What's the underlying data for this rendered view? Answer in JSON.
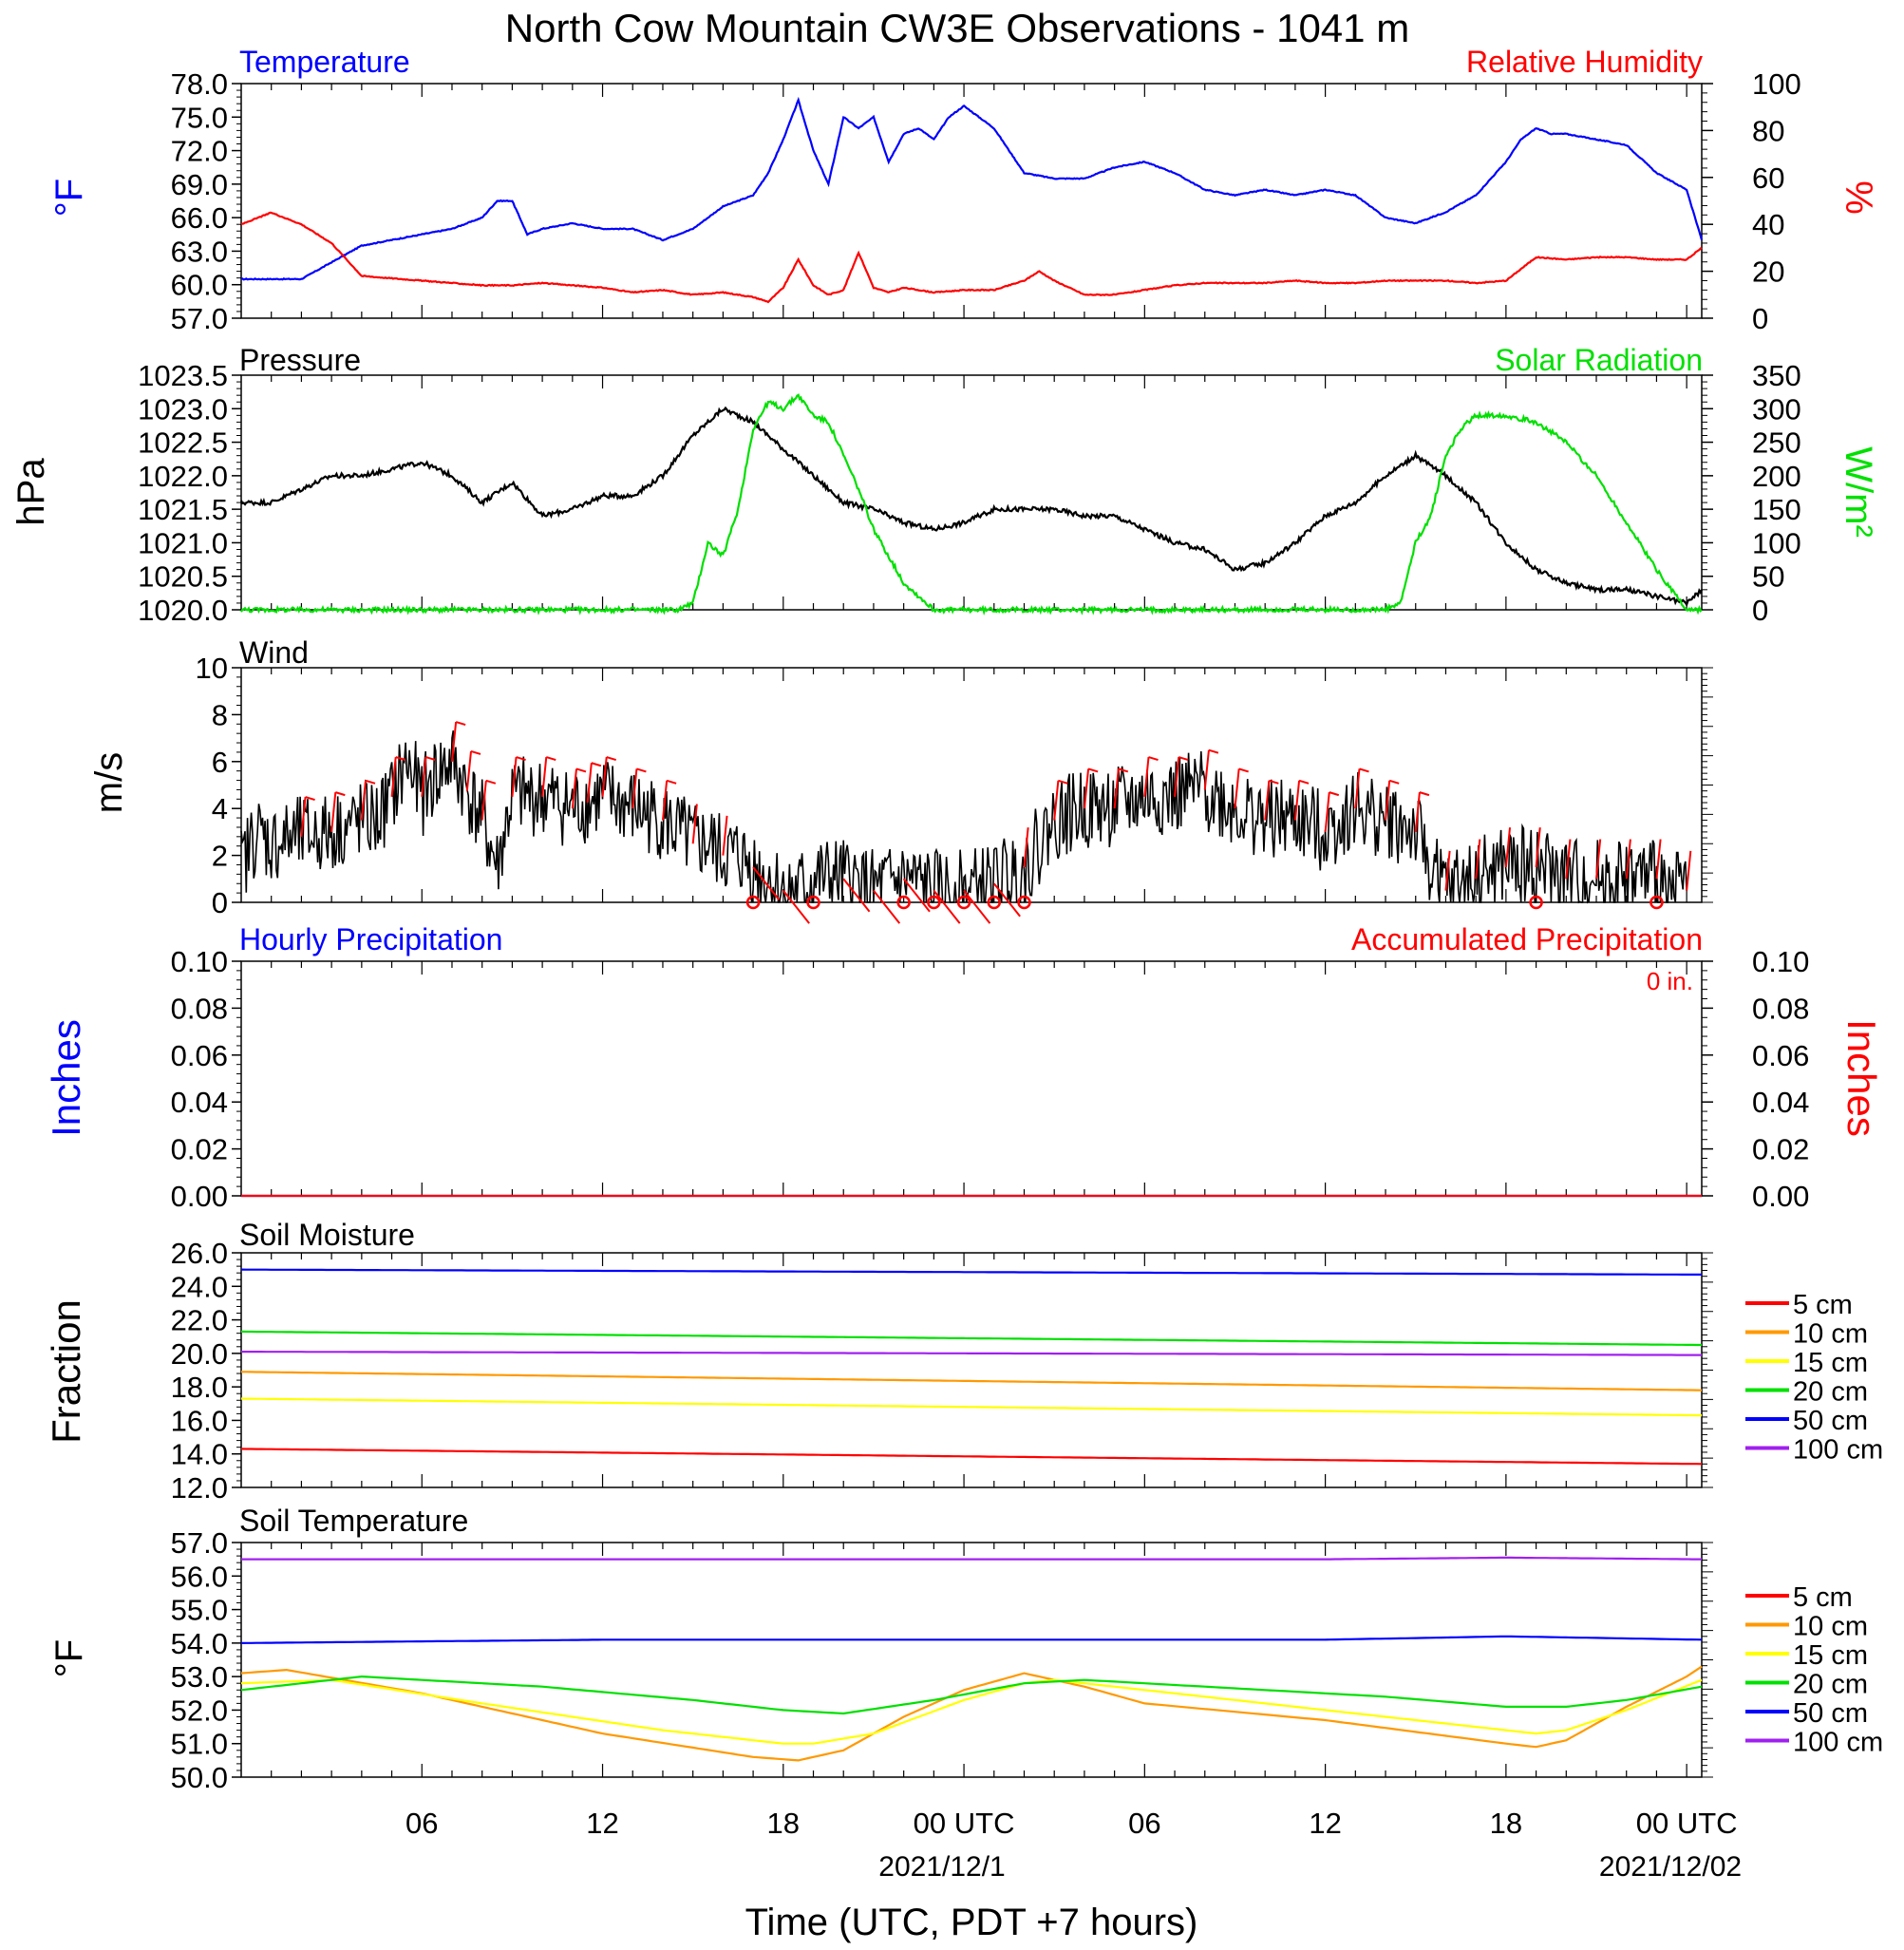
{
  "title": "North Cow Mountain CW3E Observations - 1041 m",
  "xaxis": {
    "label": "Time (UTC, PDT +7 hours)",
    "tick_labels": [
      "06",
      "12",
      "18",
      "00 UTC",
      "06",
      "12",
      "18",
      "00 UTC"
    ],
    "date_labels": [
      "2021/12/1",
      "2021/12/02"
    ]
  },
  "colors": {
    "blue": "#0000ff",
    "red": "#ff0000",
    "green": "#00e000",
    "orange": "#ff9900",
    "yellow": "#ffff00",
    "purple": "#a020f0",
    "black": "#000000"
  },
  "chart_data": [
    {
      "id": "temp_rh",
      "type": "line",
      "title_left": "Temperature",
      "title_right": "Relative Humidity",
      "ylabel_left": "°F",
      "ylabel_right": "%",
      "ylim_left": [
        57,
        78
      ],
      "ylim_right": [
        0,
        100
      ],
      "yticks_left": [
        "78.0",
        "75.0",
        "72.0",
        "69.0",
        "66.0",
        "63.0",
        "60.0",
        "57.0"
      ],
      "yticks_right": [
        "100",
        "80",
        "60",
        "40",
        "20",
        "0"
      ],
      "series": [
        {
          "name": "Temperature",
          "axis": "left",
          "color": "#0000ff",
          "x": [
            0,
            2,
            3,
            4,
            5,
            6,
            7,
            8,
            8.5,
            9,
            9.5,
            10,
            11,
            12,
            13,
            14,
            15,
            16,
            17,
            17.5,
            18,
            18.5,
            19,
            19.5,
            20,
            20.5,
            21,
            21.5,
            22,
            22.5,
            23,
            23.5,
            24,
            25,
            26,
            27,
            28,
            29,
            30,
            31,
            32,
            33,
            34,
            35,
            36,
            37,
            38,
            39,
            40,
            41,
            42,
            42.5,
            43,
            43.5,
            44,
            45,
            46,
            47,
            48,
            48.5
          ],
          "y": [
            60.5,
            60.5,
            62,
            63.5,
            64,
            64.5,
            65,
            66,
            67.5,
            67.5,
            64.5,
            65,
            65.5,
            65,
            65,
            64,
            65,
            67,
            68,
            70,
            73,
            76.5,
            72,
            69,
            75,
            74,
            75,
            71,
            73.5,
            74,
            73,
            75,
            76,
            74,
            70,
            69.5,
            69.5,
            70.5,
            71,
            70,
            68.5,
            68,
            68.5,
            68,
            68.5,
            68,
            66,
            65.5,
            66.5,
            68,
            71,
            73,
            74,
            73.5,
            73.5,
            73,
            72.5,
            70,
            68.5,
            64
          ]
        },
        {
          "name": "Relative Humidity",
          "axis": "right",
          "color": "#ff0000",
          "x": [
            0,
            1,
            2,
            3,
            4,
            5,
            6,
            7,
            8,
            9,
            10,
            11,
            12,
            13,
            14,
            15,
            16,
            17,
            17.5,
            18,
            18.5,
            19,
            19.5,
            20,
            20.5,
            21,
            21.5,
            22,
            23,
            24,
            25,
            26,
            26.5,
            27,
            28,
            29,
            30,
            31,
            32,
            33,
            34,
            35,
            36,
            37,
            38,
            39,
            40,
            41,
            42,
            43,
            44,
            45,
            46,
            47,
            48,
            48.5
          ],
          "y": [
            40,
            45,
            40,
            32,
            18,
            17,
            16,
            15,
            14,
            14,
            15,
            14,
            13,
            11,
            12,
            10,
            11,
            9,
            7,
            13,
            25,
            14,
            10,
            12,
            28,
            13,
            11,
            13,
            11,
            12,
            12,
            16,
            20,
            16,
            10,
            10,
            12,
            14,
            15,
            15,
            15,
            16,
            15,
            15,
            16,
            16,
            16,
            15,
            16,
            26,
            25,
            26,
            26,
            25,
            25,
            30
          ]
        }
      ]
    },
    {
      "id": "pres_solar",
      "type": "line",
      "title_left": "Pressure",
      "title_right": "Solar Radiation",
      "ylabel_left": "hPa",
      "ylabel_right": "W/m²",
      "ylim_left": [
        1020,
        1023.5
      ],
      "ylim_right": [
        0,
        350
      ],
      "yticks_left": [
        "1023.5",
        "1023.0",
        "1022.5",
        "1022.0",
        "1021.5",
        "1021.0",
        "1020.5",
        "1020.0"
      ],
      "yticks_right": [
        "350",
        "300",
        "250",
        "200",
        "150",
        "100",
        "50",
        "0"
      ],
      "series": [
        {
          "name": "Pressure",
          "axis": "left",
          "color": "#000000",
          "x": [
            0,
            1,
            2,
            3,
            4,
            5,
            6,
            7,
            8,
            9,
            10,
            11,
            12,
            13,
            14,
            15,
            16,
            17,
            18,
            19,
            20,
            21,
            22,
            23,
            24,
            25,
            26,
            27,
            28,
            29,
            30,
            31,
            32,
            33,
            34,
            35,
            36,
            37,
            38,
            39,
            40,
            41,
            42,
            43,
            44,
            45,
            46,
            47,
            48,
            48.5
          ],
          "y": [
            1021.6,
            1021.6,
            1021.8,
            1022.0,
            1022.0,
            1022.1,
            1022.2,
            1022.0,
            1021.6,
            1021.9,
            1021.4,
            1021.5,
            1021.7,
            1021.7,
            1022.0,
            1022.6,
            1023.0,
            1022.8,
            1022.4,
            1022.0,
            1021.6,
            1021.5,
            1021.3,
            1021.2,
            1021.3,
            1021.5,
            1021.5,
            1021.5,
            1021.4,
            1021.4,
            1021.2,
            1021.0,
            1020.9,
            1020.6,
            1020.7,
            1021.0,
            1021.4,
            1021.6,
            1022.0,
            1022.3,
            1022.0,
            1021.6,
            1021.0,
            1020.6,
            1020.4,
            1020.3,
            1020.3,
            1020.2,
            1020.1,
            1020.3
          ]
        },
        {
          "name": "Solar Radiation",
          "axis": "right",
          "color": "#00e000",
          "x": [
            0,
            14.5,
            15,
            15.5,
            16,
            16.5,
            17,
            17.5,
            18,
            18.5,
            19,
            19.5,
            20,
            20.5,
            21,
            22,
            23,
            23.5,
            24,
            38,
            38.5,
            39,
            39.5,
            40,
            40.5,
            41,
            42,
            43,
            44,
            45,
            46,
            47,
            48,
            48.5
          ],
          "y": [
            0,
            0,
            10,
            100,
            80,
            150,
            270,
            310,
            300,
            320,
            290,
            280,
            230,
            180,
            120,
            40,
            0,
            0,
            0,
            0,
            10,
            100,
            140,
            230,
            270,
            290,
            290,
            280,
            250,
            200,
            130,
            60,
            0,
            0
          ]
        }
      ]
    },
    {
      "id": "wind",
      "type": "line",
      "title_left": "Wind",
      "ylabel_left": "m/s",
      "ylim_left": [
        0,
        10
      ],
      "yticks_left": [
        "10",
        "8",
        "6",
        "4",
        "2",
        "0"
      ],
      "series": [
        {
          "name": "Wind",
          "axis": "left",
          "color": "#000000",
          "x": [
            0,
            0.5,
            1,
            2,
            3,
            4,
            4.5,
            5,
            5.5,
            6,
            6.5,
            7,
            8,
            8.5,
            9,
            10,
            11,
            12,
            13,
            14,
            15,
            15.5,
            16,
            16.5,
            17,
            17.5,
            18,
            18.5,
            19,
            20,
            21,
            22,
            23,
            24,
            25,
            26,
            27,
            28,
            29,
            30,
            31,
            32,
            33,
            34,
            35,
            36,
            37,
            38,
            39,
            39.5,
            40,
            41,
            42,
            43,
            44,
            45,
            46,
            47,
            48
          ],
          "y": [
            1.5,
            3,
            2.5,
            2.8,
            3,
            3.5,
            3.5,
            4.5,
            6,
            4.5,
            5.5,
            6,
            3.5,
            1.5,
            4.5,
            4.5,
            4,
            4.5,
            4,
            3.5,
            2.5,
            2.5,
            2,
            2,
            1.5,
            1,
            0.5,
            0.5,
            1,
            1,
            0.5,
            1,
            0.5,
            0.5,
            0.8,
            1.5,
            3.5,
            4,
            4,
            4.5,
            4.5,
            4.8,
            4,
            3.5,
            3.5,
            3,
            4,
            3.5,
            3,
            1.5,
            0.5,
            1,
            1.5,
            1.5,
            1,
            1,
            1,
            1,
            0.5
          ]
        }
      ],
      "barbs_x": [
        2,
        3,
        4,
        5,
        6,
        7,
        7.5,
        8,
        9,
        10,
        11,
        11.5,
        12,
        13,
        14,
        15,
        16,
        17,
        18,
        20,
        21,
        22,
        23,
        24,
        25,
        26,
        27,
        28,
        29,
        30,
        31,
        32,
        33,
        34,
        35,
        36,
        37,
        38,
        39,
        40,
        41,
        42,
        43,
        44,
        45,
        46,
        47,
        48
      ],
      "calm_x": [
        17,
        19,
        22,
        23,
        24,
        25,
        26,
        43,
        47
      ]
    },
    {
      "id": "precip",
      "type": "line",
      "title_left": "Hourly Precipitation",
      "title_right": "Accumulated Precipitation",
      "annotation": "0 in.",
      "ylabel_left": "Inches",
      "ylabel_right": "Inches",
      "ylim_left": [
        0,
        0.1
      ],
      "ylim_right": [
        0,
        0.1
      ],
      "yticks_left": [
        "0.10",
        "0.08",
        "0.06",
        "0.04",
        "0.02",
        "0.00"
      ],
      "yticks_right": [
        "0.10",
        "0.08",
        "0.06",
        "0.04",
        "0.02",
        "0.00"
      ],
      "series": [
        {
          "name": "Hourly Precipitation",
          "axis": "left",
          "color": "#0000ff",
          "x": [
            0,
            48.5
          ],
          "y": [
            0,
            0
          ]
        },
        {
          "name": "Accumulated Precipitation",
          "axis": "right",
          "color": "#ff0000",
          "x": [
            0,
            48.5
          ],
          "y": [
            0,
            0
          ]
        }
      ]
    },
    {
      "id": "soil_moist",
      "type": "line",
      "title_left": "Soil Moisture",
      "ylabel_left": "Fraction",
      "ylim_left": [
        12,
        26
      ],
      "yticks_left": [
        "26.0",
        "24.0",
        "22.0",
        "20.0",
        "18.0",
        "16.0",
        "14.0",
        "12.0"
      ],
      "series": [
        {
          "name": "5 cm",
          "axis": "left",
          "color": "#ff0000",
          "x": [
            0,
            48.5
          ],
          "y": [
            14.3,
            13.4
          ]
        },
        {
          "name": "10 cm",
          "axis": "left",
          "color": "#ff9900",
          "x": [
            0,
            48.5
          ],
          "y": [
            18.9,
            17.8
          ]
        },
        {
          "name": "15 cm",
          "axis": "left",
          "color": "#ffff00",
          "x": [
            0,
            48.5
          ],
          "y": [
            17.3,
            16.3
          ]
        },
        {
          "name": "20 cm",
          "axis": "left",
          "color": "#00e000",
          "x": [
            0,
            48.5
          ],
          "y": [
            21.3,
            20.5
          ]
        },
        {
          "name": "50 cm",
          "axis": "left",
          "color": "#0000ff",
          "x": [
            0,
            48.5
          ],
          "y": [
            25.0,
            24.7
          ]
        },
        {
          "name": "100 cm",
          "axis": "left",
          "color": "#a020f0",
          "x": [
            0,
            48.5
          ],
          "y": [
            20.1,
            19.9
          ]
        }
      ]
    },
    {
      "id": "soil_temp",
      "type": "line",
      "title_left": "Soil Temperature",
      "ylabel_left": "°F",
      "ylim_left": [
        50,
        57
      ],
      "yticks_left": [
        "57.0",
        "56.0",
        "55.0",
        "54.0",
        "53.0",
        "52.0",
        "51.0",
        "50.0"
      ],
      "series": [
        {
          "name": "5 cm",
          "axis": "left",
          "color": "#ff0000",
          "x": [],
          "y": []
        },
        {
          "name": "10 cm",
          "axis": "left",
          "color": "#ff9900",
          "x": [
            0,
            1.5,
            6,
            12,
            17,
            18.5,
            20,
            22,
            24,
            26,
            28,
            30,
            36,
            42,
            43,
            44,
            46,
            48,
            48.5
          ],
          "y": [
            53.1,
            53.2,
            52.5,
            51.3,
            50.6,
            50.5,
            50.8,
            51.8,
            52.6,
            53.1,
            52.7,
            52.2,
            51.7,
            51,
            50.9,
            51.1,
            52.1,
            53,
            53.3
          ]
        },
        {
          "name": "15 cm",
          "axis": "left",
          "color": "#ffff00",
          "x": [
            0,
            3,
            8,
            14,
            18,
            19,
            21,
            24,
            26,
            27,
            30,
            36,
            43,
            44,
            46,
            48.5
          ],
          "y": [
            52.8,
            52.9,
            52.2,
            51.4,
            51.0,
            51.0,
            51.3,
            52.3,
            52.8,
            52.9,
            52.6,
            52.0,
            51.3,
            51.4,
            52,
            52.9
          ]
        },
        {
          "name": "20 cm",
          "axis": "left",
          "color": "#00e000",
          "x": [
            0,
            4,
            10,
            15,
            18,
            20,
            23,
            26,
            28,
            32,
            38,
            42,
            44,
            46,
            48.5
          ],
          "y": [
            52.6,
            53.0,
            52.7,
            52.3,
            52.0,
            51.9,
            52.3,
            52.8,
            52.9,
            52.7,
            52.4,
            52.1,
            52.1,
            52.3,
            52.7
          ]
        },
        {
          "name": "50 cm",
          "axis": "left",
          "color": "#0000ff",
          "x": [
            0,
            12,
            18,
            24,
            30,
            36,
            42,
            48.5
          ],
          "y": [
            54,
            54.1,
            54.1,
            54.1,
            54.1,
            54.1,
            54.2,
            54.1
          ]
        },
        {
          "name": "100 cm",
          "axis": "left",
          "color": "#a020f0",
          "x": [
            0,
            12,
            24,
            36,
            42,
            48.5
          ],
          "y": [
            56.5,
            56.5,
            56.5,
            56.5,
            56.55,
            56.5
          ]
        }
      ]
    }
  ]
}
